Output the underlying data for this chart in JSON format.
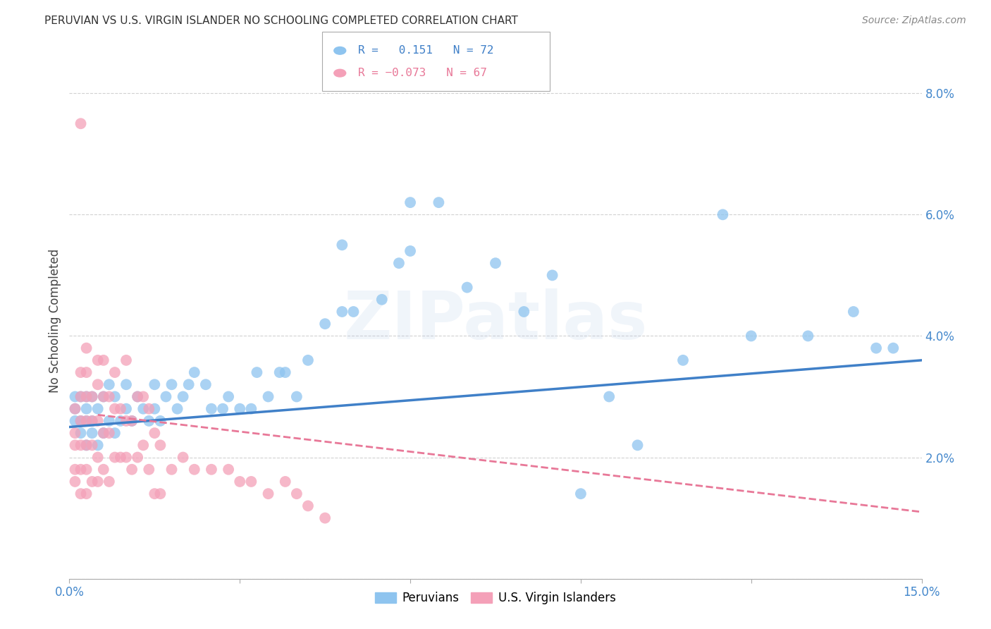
{
  "title": "PERUVIAN VS U.S. VIRGIN ISLANDER NO SCHOOLING COMPLETED CORRELATION CHART",
  "source": "Source: ZipAtlas.com",
  "ylabel": "No Schooling Completed",
  "xlim": [
    0.0,
    0.15
  ],
  "ylim": [
    0.0,
    0.085
  ],
  "blue_color": "#8ec4ef",
  "pink_color": "#f4a0b8",
  "blue_line_color": "#4080c8",
  "pink_line_color": "#e87898",
  "watermark": "ZIPatlas",
  "peruvian_R": 0.151,
  "peruvian_N": 72,
  "virgin_R": -0.073,
  "virgin_N": 67,
  "peru_x": [
    0.001,
    0.001,
    0.001,
    0.002,
    0.002,
    0.002,
    0.003,
    0.003,
    0.003,
    0.003,
    0.004,
    0.004,
    0.004,
    0.005,
    0.005,
    0.006,
    0.006,
    0.007,
    0.007,
    0.008,
    0.008,
    0.009,
    0.01,
    0.01,
    0.011,
    0.012,
    0.013,
    0.014,
    0.015,
    0.015,
    0.016,
    0.017,
    0.018,
    0.019,
    0.02,
    0.021,
    0.022,
    0.024,
    0.025,
    0.027,
    0.028,
    0.03,
    0.032,
    0.033,
    0.035,
    0.037,
    0.038,
    0.04,
    0.042,
    0.045,
    0.048,
    0.05,
    0.055,
    0.058,
    0.06,
    0.065,
    0.07,
    0.075,
    0.08,
    0.085,
    0.09,
    0.095,
    0.1,
    0.108,
    0.115,
    0.12,
    0.13,
    0.138,
    0.142,
    0.145,
    0.048,
    0.06
  ],
  "peru_y": [
    0.026,
    0.028,
    0.03,
    0.024,
    0.026,
    0.03,
    0.022,
    0.026,
    0.028,
    0.03,
    0.024,
    0.026,
    0.03,
    0.022,
    0.028,
    0.024,
    0.03,
    0.026,
    0.032,
    0.024,
    0.03,
    0.026,
    0.028,
    0.032,
    0.026,
    0.03,
    0.028,
    0.026,
    0.028,
    0.032,
    0.026,
    0.03,
    0.032,
    0.028,
    0.03,
    0.032,
    0.034,
    0.032,
    0.028,
    0.028,
    0.03,
    0.028,
    0.028,
    0.034,
    0.03,
    0.034,
    0.034,
    0.03,
    0.036,
    0.042,
    0.044,
    0.044,
    0.046,
    0.052,
    0.054,
    0.062,
    0.048,
    0.052,
    0.044,
    0.05,
    0.014,
    0.03,
    0.022,
    0.036,
    0.06,
    0.04,
    0.04,
    0.044,
    0.038,
    0.038,
    0.055,
    0.062
  ],
  "virgin_x": [
    0.001,
    0.001,
    0.001,
    0.001,
    0.001,
    0.002,
    0.002,
    0.002,
    0.002,
    0.002,
    0.002,
    0.003,
    0.003,
    0.003,
    0.003,
    0.003,
    0.003,
    0.004,
    0.004,
    0.004,
    0.004,
    0.005,
    0.005,
    0.005,
    0.005,
    0.006,
    0.006,
    0.006,
    0.007,
    0.007,
    0.007,
    0.008,
    0.008,
    0.009,
    0.009,
    0.01,
    0.01,
    0.011,
    0.011,
    0.012,
    0.013,
    0.014,
    0.015,
    0.016,
    0.003,
    0.005,
    0.006,
    0.008,
    0.01,
    0.012,
    0.013,
    0.014,
    0.015,
    0.016,
    0.018,
    0.02,
    0.022,
    0.025,
    0.028,
    0.03,
    0.032,
    0.035,
    0.038,
    0.04,
    0.042,
    0.045,
    0.002
  ],
  "virgin_y": [
    0.016,
    0.018,
    0.022,
    0.024,
    0.028,
    0.014,
    0.018,
    0.022,
    0.026,
    0.03,
    0.034,
    0.014,
    0.018,
    0.022,
    0.026,
    0.03,
    0.034,
    0.016,
    0.022,
    0.026,
    0.03,
    0.016,
    0.02,
    0.026,
    0.032,
    0.018,
    0.024,
    0.03,
    0.016,
    0.024,
    0.03,
    0.02,
    0.028,
    0.02,
    0.028,
    0.02,
    0.026,
    0.018,
    0.026,
    0.02,
    0.022,
    0.018,
    0.014,
    0.014,
    0.038,
    0.036,
    0.036,
    0.034,
    0.036,
    0.03,
    0.03,
    0.028,
    0.024,
    0.022,
    0.018,
    0.02,
    0.018,
    0.018,
    0.018,
    0.016,
    0.016,
    0.014,
    0.016,
    0.014,
    0.012,
    0.01,
    0.075
  ]
}
